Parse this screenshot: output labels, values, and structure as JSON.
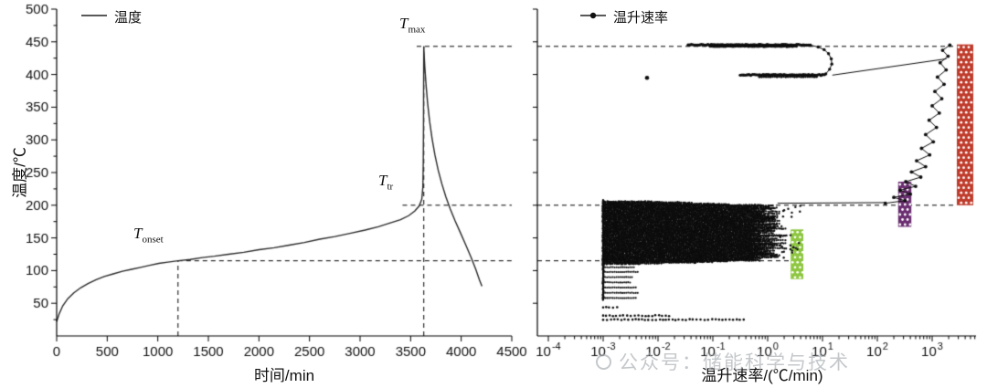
{
  "watermark": {
    "text": "公众号：储能科学与技术"
  },
  "chart_data": [
    {
      "type": "line",
      "title": "",
      "xlabel": "时间/min",
      "ylabel": "温度/℃",
      "xlim": [
        0,
        4500
      ],
      "ylim": [
        0,
        500
      ],
      "xticks": [
        0,
        500,
        1000,
        1500,
        2000,
        2500,
        3000,
        3500,
        4000,
        4500
      ],
      "yticks": [
        50,
        100,
        150,
        200,
        250,
        300,
        350,
        400,
        450,
        500
      ],
      "grid": false,
      "legend": {
        "position": "top-left",
        "items": [
          {
            "label": "温度",
            "marker": "line"
          }
        ]
      },
      "series": [
        {
          "name": "温度",
          "color": "#2b2b2b",
          "points": [
            [
              0,
              22
            ],
            [
              25,
              34
            ],
            [
              60,
              46
            ],
            [
              110,
              57
            ],
            [
              170,
              66
            ],
            [
              240,
              74
            ],
            [
              310,
              80
            ],
            [
              390,
              86
            ],
            [
              470,
              91
            ],
            [
              560,
              95
            ],
            [
              650,
              99
            ],
            [
              740,
              102
            ],
            [
              830,
              105
            ],
            [
              920,
              108
            ],
            [
              1010,
              111
            ],
            [
              1100,
              113
            ],
            [
              1200,
              115
            ],
            [
              1320,
              117
            ],
            [
              1440,
              120
            ],
            [
              1560,
              122
            ],
            [
              1700,
              125
            ],
            [
              1850,
              128
            ],
            [
              2000,
              132
            ],
            [
              2150,
              135
            ],
            [
              2300,
              139
            ],
            [
              2450,
              143
            ],
            [
              2600,
              148
            ],
            [
              2750,
              152
            ],
            [
              2900,
              157
            ],
            [
              3050,
              162
            ],
            [
              3180,
              167
            ],
            [
              3300,
              173
            ],
            [
              3400,
              178
            ],
            [
              3480,
              184
            ],
            [
              3540,
              191
            ],
            [
              3585,
              199
            ],
            [
              3610,
              209
            ],
            [
              3621,
              228
            ],
            [
              3625,
              265
            ],
            [
              3627,
              315
            ],
            [
              3628,
              370
            ],
            [
              3629,
              410
            ],
            [
              3630,
              443
            ],
            [
              3633,
              432
            ],
            [
              3640,
              412
            ],
            [
              3652,
              385
            ],
            [
              3668,
              356
            ],
            [
              3688,
              328
            ],
            [
              3712,
              302
            ],
            [
              3740,
              277
            ],
            [
              3772,
              254
            ],
            [
              3808,
              233
            ],
            [
              3848,
              213
            ],
            [
              3892,
              194
            ],
            [
              3940,
              176
            ],
            [
              3992,
              158
            ],
            [
              4046,
              139
            ],
            [
              4098,
              120
            ],
            [
              4144,
              102
            ],
            [
              4180,
              86
            ],
            [
              4205,
              76
            ]
          ]
        }
      ],
      "annotations": [
        {
          "main": "T",
          "sub": "onset",
          "x": 1200,
          "y": 115
        },
        {
          "main": "T",
          "sub": "tr",
          "x": 3585,
          "y": 200
        },
        {
          "main": "T",
          "sub": "max",
          "x": 3630,
          "y": 443
        }
      ],
      "ref_lines": {
        "vertical": [
          {
            "x": 1200,
            "y_from": 0,
            "y_to": 115
          },
          {
            "x": 3630,
            "y_from": 0,
            "y_to": 443
          }
        ],
        "horizontal": [
          {
            "y": 115,
            "x_from": 1200
          },
          {
            "y": 200,
            "x_from": 3420
          },
          {
            "y": 443,
            "x_from": 3560
          }
        ]
      }
    },
    {
      "type": "scatter",
      "xlabel": "温升速率/(℃/min)",
      "ylabel": "",
      "x_scale": "log",
      "xlim_log": [
        -4,
        3.9
      ],
      "ylim": [
        0,
        500
      ],
      "xtick_exponents": [
        -4,
        -3,
        -2,
        -1,
        0,
        1,
        2,
        3
      ],
      "legend": {
        "position": "top-left",
        "items": [
          {
            "label": "温升速率",
            "marker": "line+dot"
          }
        ]
      },
      "point_color": "#0d0d0d",
      "ref_temps": [
        115,
        200,
        443
      ],
      "blob": {
        "temp_range": [
          110,
          206
        ],
        "row_step": 1.1,
        "log_min": -3,
        "edge_base": -0.3,
        "edge_var": 0.55,
        "spike_prob": 0.13,
        "spike_extra": 0.5,
        "edge_cap": 0.35,
        "dot_step": 0.034
      },
      "left_column": {
        "temp_range": [
          55,
          208
        ],
        "log": -3
      },
      "comb_rows": {
        "temps": [
          58,
          66,
          74,
          82,
          90,
          98,
          105
        ],
        "log_min": -3,
        "log_max": -2.5
      },
      "bottom_rows": [
        {
          "temp": 25,
          "log_min": -3,
          "log_max": -0.38
        },
        {
          "temp": 31,
          "log_min": -3,
          "log_max": -1.75
        },
        {
          "temp": 44,
          "log_min": -3,
          "log_max": -2.7
        }
      ],
      "sporadic": {
        "n": 28,
        "temp_range": [
          118,
          202
        ],
        "log_range": [
          0.05,
          0.6
        ]
      },
      "outliers": [
        {
          "log": -2.2,
          "temp": 395,
          "r": 2.3
        }
      ],
      "top_bands": [
        {
          "temp": 445.4,
          "log_range": [
            -1.45,
            0.78
          ],
          "step": 0.03,
          "r": 1.7,
          "line": true,
          "wobble": 1.2
        },
        {
          "temp": 443.0,
          "log_range": [
            -1.05,
            0.55
          ],
          "step": 0.035,
          "r": 1.5,
          "line": false,
          "wobble": 1.0
        },
        {
          "temp": 399.4,
          "log_range": [
            -0.5,
            1.05
          ],
          "step": 0.032,
          "r": 1.7,
          "line": true,
          "wobble": 1.2
        },
        {
          "temp": 396.6,
          "log_range": [
            -0.15,
            0.9
          ],
          "step": 0.04,
          "r": 1.4,
          "line": false,
          "wobble": 0.9
        }
      ],
      "hook": [
        [
          0.78,
          445
        ],
        [
          0.92,
          442
        ],
        [
          1.03,
          438
        ],
        [
          1.11,
          432
        ],
        [
          1.16,
          424
        ],
        [
          1.17,
          416
        ],
        [
          1.13,
          408
        ],
        [
          1.06,
          401
        ],
        [
          0.97,
          398.5
        ]
      ],
      "connectors": [
        {
          "from_log": [
            1.18,
            399
          ],
          "to_log": [
            3.26,
            424
          ]
        },
        {
          "from_log": [
            0.18,
            203
          ],
          "to_log": [
            2.15,
            204
          ]
        }
      ],
      "branch": {
        "points": [
          [
            140,
            203
          ],
          [
            320,
            207
          ],
          [
            200,
            212
          ],
          [
            400,
            217
          ],
          [
            260,
            223
          ],
          [
            500,
            229
          ],
          [
            330,
            236
          ],
          [
            620,
            243
          ],
          [
            420,
            251
          ],
          [
            760,
            259
          ],
          [
            520,
            268
          ],
          [
            900,
            277
          ],
          [
            640,
            287
          ],
          [
            1050,
            297
          ],
          [
            760,
            308
          ],
          [
            1200,
            319
          ],
          [
            880,
            330
          ],
          [
            1350,
            341
          ],
          [
            1000,
            352
          ],
          [
            1500,
            363
          ],
          [
            1120,
            374
          ],
          [
            1650,
            385
          ],
          [
            1250,
            396
          ],
          [
            1800,
            407
          ],
          [
            1400,
            418
          ],
          [
            1950,
            428
          ],
          [
            1550,
            437
          ],
          [
            2100,
            445
          ]
        ]
      },
      "bars": [
        {
          "name": "green",
          "color": "#8dc63f",
          "log_range": [
            0.42,
            0.65
          ],
          "temp_range": [
            87,
            163
          ]
        },
        {
          "name": "purple",
          "color": "#6a2d70",
          "log_range": [
            2.38,
            2.62
          ],
          "temp_range": [
            167,
            236
          ]
        },
        {
          "name": "red",
          "color": "#bf3b2b",
          "log_range": [
            3.45,
            3.75
          ],
          "temp_range": [
            200,
            446
          ]
        }
      ]
    }
  ]
}
